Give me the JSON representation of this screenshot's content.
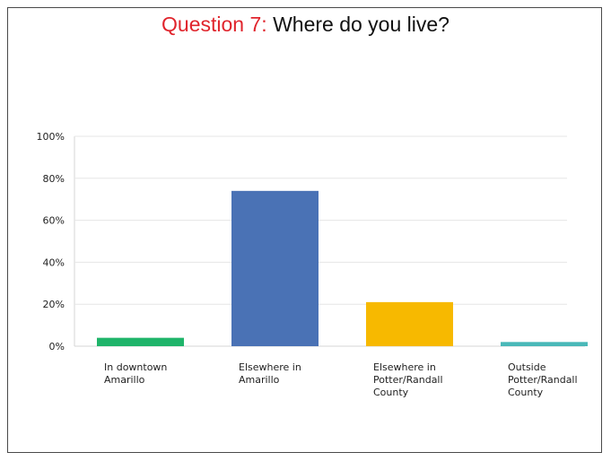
{
  "title": {
    "prefix": "Question 7:",
    "text": "Where do you live?"
  },
  "chart_data": {
    "type": "bar",
    "categories": [
      [
        "In downtown",
        "Amarillo"
      ],
      [
        "Elsewhere in",
        "Amarillo"
      ],
      [
        "Elsewhere in",
        "Potter/Randall",
        "County"
      ],
      [
        "Outside",
        "Potter/Randall",
        "County"
      ]
    ],
    "values": [
      4,
      74,
      21,
      2
    ],
    "colors": [
      "#1fb46a",
      "#4a72b5",
      "#f7b900",
      "#49b8b8"
    ],
    "ylim": [
      0,
      100
    ],
    "yticks": [
      "0%",
      "20%",
      "40%",
      "60%",
      "80%",
      "100%"
    ],
    "ytick_values": [
      0,
      20,
      40,
      60,
      80,
      100
    ],
    "grid": true,
    "legend": "none"
  }
}
